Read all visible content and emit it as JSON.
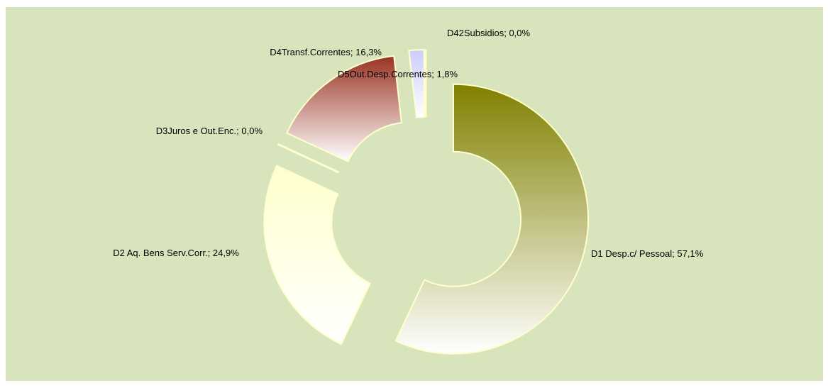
{
  "chart_data": {
    "type": "pie",
    "values": [
      57.1,
      24.9,
      0,
      16.3,
      1.8,
      0
    ],
    "value_labels": [
      "D1 Desp.c/ Pessoal; 57,1%",
      "D2 Aq. Bens Serv.Corr.; 24,9%",
      "D3Juros e Out.Enc.; 0,0%",
      "D4Transf.Correntes; 16,3%",
      "D5Out.Desp.Correntes; 1,8%",
      "D42Subsidios; 0,0%"
    ],
    "colors": [
      "#808000",
      "#ffffcc",
      "#ffffcc",
      "#993322",
      "#ccccff",
      "#ffffcc"
    ],
    "donut": true,
    "exploded": true
  }
}
